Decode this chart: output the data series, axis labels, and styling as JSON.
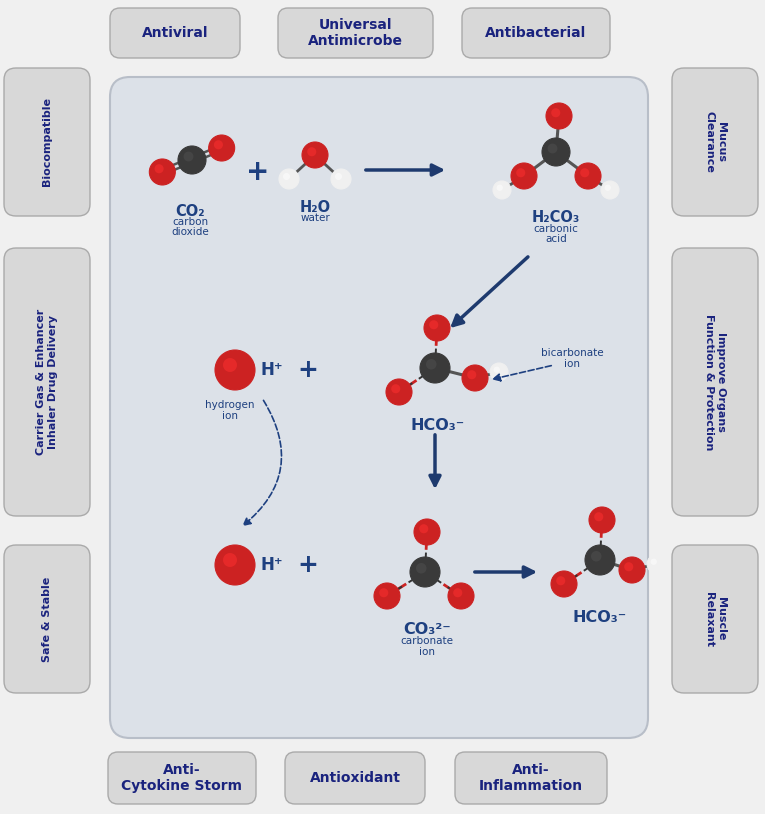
{
  "fig_width": 7.65,
  "fig_height": 8.14,
  "dpi": 100,
  "bg_color": "#f0f0f0",
  "panel_bg": "#dde2e8",
  "box_bg": "#d8d8d8",
  "dark_blue": "#1a237e",
  "arrow_blue": "#1e3a6e",
  "label_blue": "#1e4080",
  "top_labels": [
    "Antiviral",
    "Universal\nAntimicrobe",
    "Antibacterial"
  ],
  "bottom_labels": [
    "Anti-\nCytokine Storm",
    "Antioxidant",
    "Anti-\nInflammation"
  ],
  "left_labels": [
    "Biocompatible",
    "Carrier Gas & Enhancer\nInhaler Drug Delivery",
    "Safe & Stable"
  ],
  "right_labels": [
    "Mucus\nClearance",
    "Improve Organs\nFunction & Protection",
    "Muscle\nRelaxant"
  ],
  "red": "#cc2222",
  "white_atom": "#f0f0f0",
  "dark_gray": "#3a3a3a",
  "bond_color": "#555555"
}
